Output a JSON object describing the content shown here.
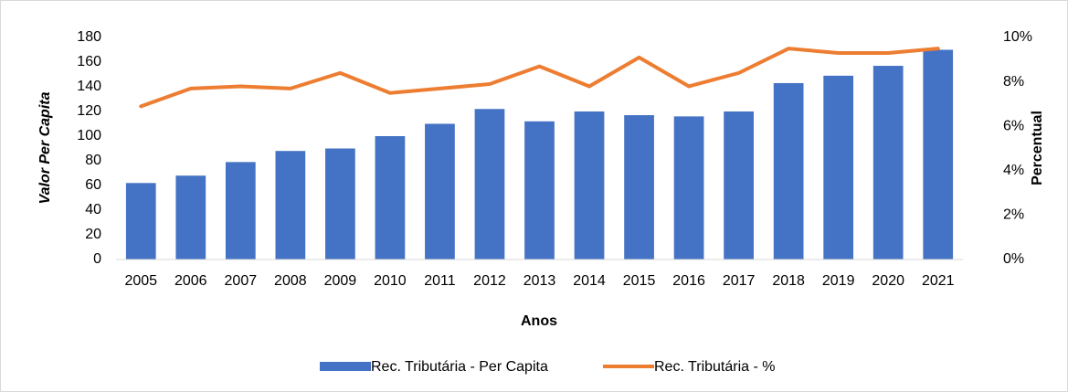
{
  "chart_data": {
    "type": "bar",
    "x_label": "Anos",
    "y_label": "Valor Per Capita",
    "y2_label": "Percentual",
    "categories": [
      "2005",
      "2006",
      "2007",
      "2008",
      "2009",
      "2010",
      "2011",
      "2012",
      "2013",
      "2014",
      "2015",
      "2016",
      "2017",
      "2018",
      "2019",
      "2020",
      "2021"
    ],
    "series": [
      {
        "name": "Rec. Tributária - Per Capita",
        "type": "bar",
        "color": "#4472c4",
        "values": [
          62,
          68,
          79,
          88,
          90,
          100,
          110,
          122,
          112,
          120,
          117,
          116,
          120,
          143,
          149,
          157,
          170
        ]
      },
      {
        "name": "Rec. Tributária - %",
        "type": "line",
        "axis": "y2",
        "color": "#ed7d31",
        "values": [
          6.9,
          7.7,
          7.8,
          7.7,
          8.4,
          7.5,
          7.7,
          7.9,
          8.7,
          7.8,
          9.1,
          7.8,
          8.4,
          9.5,
          9.3,
          9.3,
          9.5
        ]
      }
    ],
    "ylim": [
      0,
      180
    ],
    "yticks": [
      0,
      20,
      40,
      60,
      80,
      100,
      120,
      140,
      160,
      180
    ],
    "y2lim": [
      0,
      10
    ],
    "y2ticks": [
      {
        "value": 0,
        "label": "0%"
      },
      {
        "value": 2,
        "label": "2%"
      },
      {
        "value": 4,
        "label": "4%"
      },
      {
        "value": 6,
        "label": "6%"
      },
      {
        "value": 8,
        "label": "8%"
      },
      {
        "value": 10,
        "label": "10%"
      }
    ],
    "grid": false,
    "legend": "bottom"
  }
}
